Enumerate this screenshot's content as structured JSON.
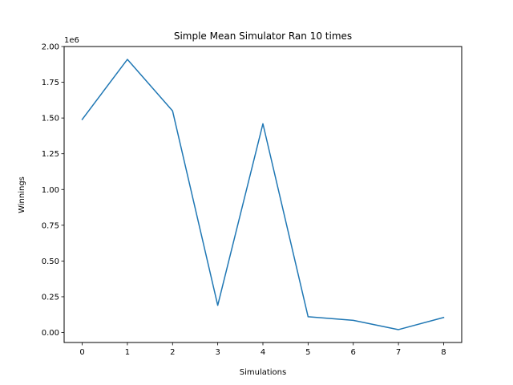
{
  "chart_data": {
    "type": "line",
    "title": "Simple Mean Simulator Ran 10 times",
    "xlabel": "Simulations",
    "ylabel": "Winnings",
    "y_offset_label": "1e6",
    "x": [
      0,
      1,
      2,
      3,
      4,
      5,
      6,
      7,
      8
    ],
    "series": [
      {
        "values": [
          1.49,
          1.91,
          1.55,
          0.19,
          1.46,
          0.11,
          0.085,
          0.02,
          0.105
        ],
        "color": "#1f77b4"
      }
    ],
    "xlim": [
      -0.4,
      8.4
    ],
    "ylim": [
      -0.07,
      2.0
    ],
    "xticks": [
      "0",
      "1",
      "2",
      "3",
      "4",
      "5",
      "6",
      "7",
      "8"
    ],
    "yticks": [
      "0.00",
      "0.25",
      "0.50",
      "0.75",
      "1.00",
      "1.25",
      "1.50",
      "1.75",
      "2.00"
    ],
    "grid": false,
    "legend": "none"
  }
}
